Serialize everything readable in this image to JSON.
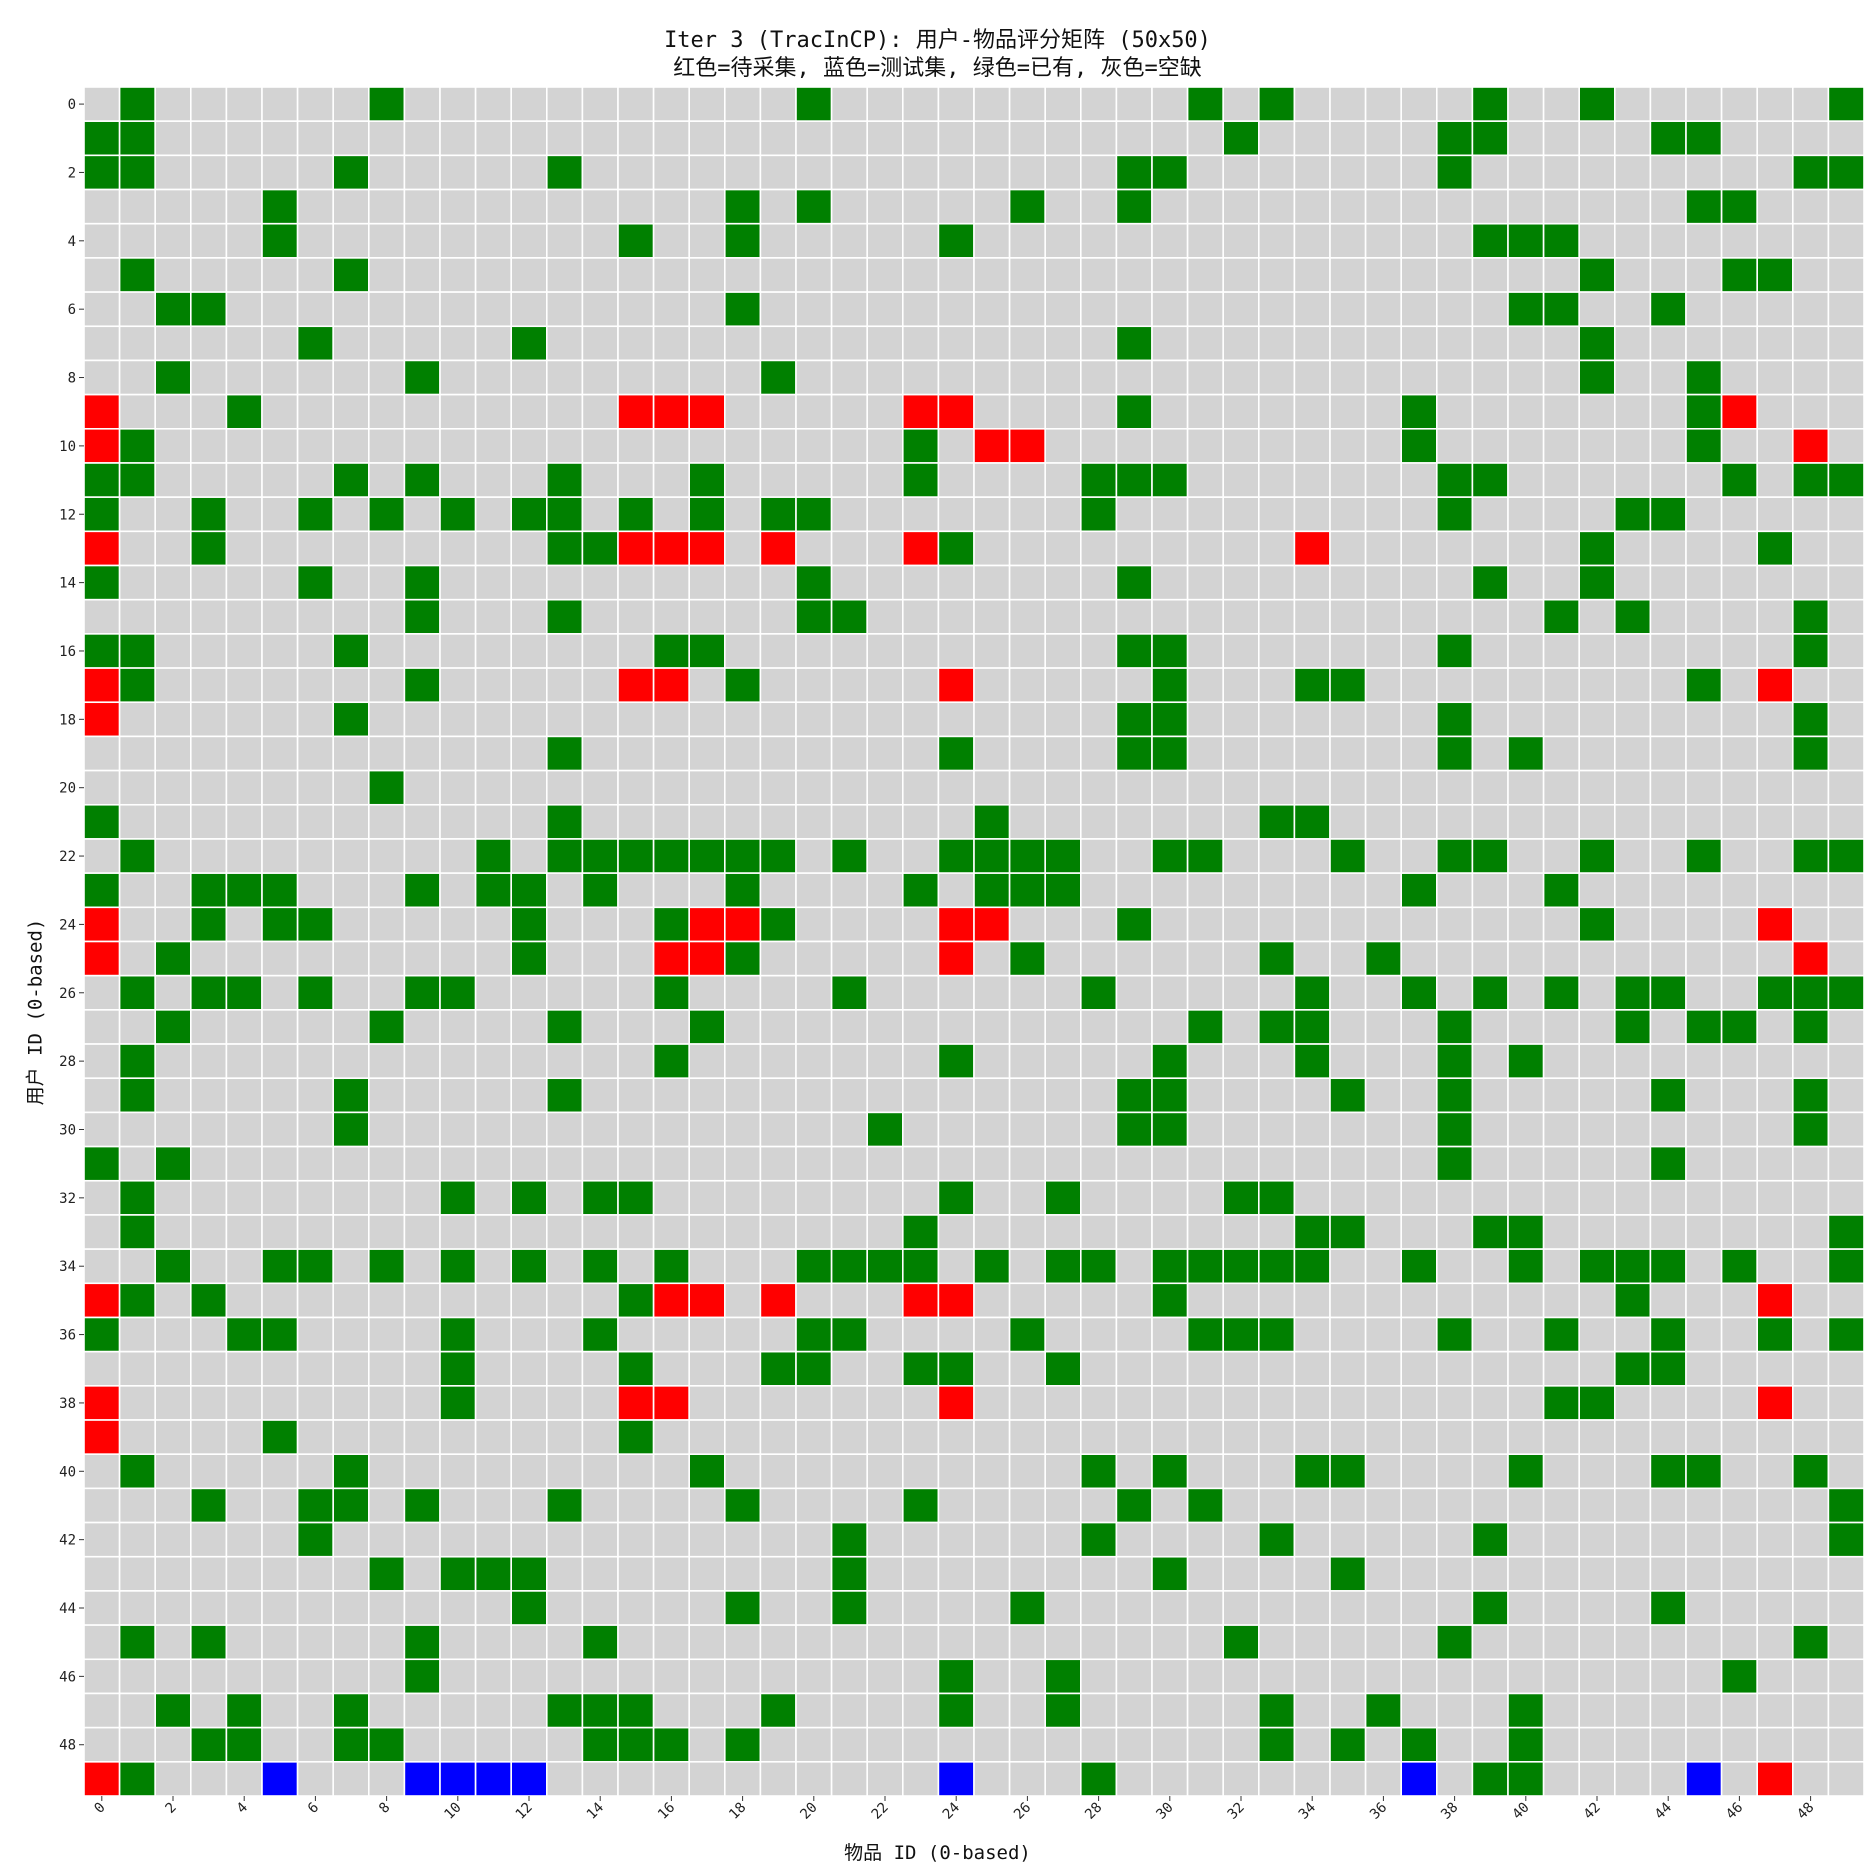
{
  "chart_data": {
    "type": "heatmap",
    "title": "Iter 3 (TracInCP): 用户-物品评分矩阵 (50x50)",
    "subtitle": "红色=待采集, 蓝色=测试集, 绿色=已有, 灰色=空缺",
    "xlabel": "物品 ID (0-based)",
    "ylabel": "用户 ID (0-based)",
    "rows": 50,
    "cols": 50,
    "x_ticks": [
      0,
      2,
      4,
      6,
      8,
      10,
      12,
      14,
      16,
      18,
      20,
      22,
      24,
      26,
      28,
      30,
      32,
      34,
      36,
      38,
      40,
      42,
      44,
      46,
      48
    ],
    "y_ticks": [
      0,
      2,
      4,
      6,
      8,
      10,
      12,
      14,
      16,
      18,
      20,
      22,
      24,
      26,
      28,
      30,
      32,
      34,
      36,
      38,
      40,
      42,
      44,
      46,
      48
    ],
    "colors": {
      "red": "#ff0000",
      "blue": "#0000ff",
      "green": "#008000",
      "gray": "#d3d3d3",
      "gridline": "#ffffff"
    },
    "legend_map": {
      "R": "待采集",
      "B": "测试集",
      "G": "已有",
      ".": "空缺"
    },
    "matrix": [
      ".G......G...........G..........G.G.....G..G......G.",
      "GG..............................G.....GG....GG....GGG..GG..",
      "GG.....G.....G...............GG.......G.........GG",
      ".....G............G.G.....G..G...............GG......",
      ".....G.........G..G.....G..............GGG.........",
      ".G.....G..................................G...GG....GG..G....",
      "..GG..............G.....................GG..G......G......",
      "......G.....G................G............G.......",
      "..G......G.........G......................G..G....",
      "R...G..........RRR.....RR....G.......G.......GR..",
      "RG.....................G.RR..........G.......G..R..",
      "GG.....G.G...G...G.....G....GGG.......GG......G.GG",
      "G..G..G.G.G.GG.G.G.GG.......G.........G....GG.....",
      "R..G.........GGRRR.R...RG.........R.......G....G..",
      "G.....G..G..........G........G.........G..G......",
      ".........G...G......GG...................G.G....G.",
      "GG.....G........GG...........GG.......G.........G.",
      "RG.......G.....RR.G.....R.....G...GG.........G.R..",
      "R......G.....................GG.......G.........G.",
      ".............G..........G....GG.......G.G.......G.",
      "........G.........................................",
      "G............G...........G.......GG...............",
      ".G.........G.GGGGGGG.G..GGGG..GG...G..GG..G..G..GGG",
      "G..GGG...G.GG.G...G....G.GGG.........G...G......",
      "R..G.GG.....G...GRRG....RR...G............G....R..",
      "R.G.........G...RRG.....R.G......G..G...........R..",
      ".G.GG.G..GG.....G....G......G.....G..G.G.G.GG..GGG",
      "..G.....G....G...G.............G.GG...G....G.GG.G....",
      ".G..............G.......G.....G...G...G.G.........",
      ".G.....G.....G...............GG....G..G.....G...G.",
      ".......G..............G......GG.......G.........G.",
      "G.G...................................G.....G.....",
      ".G........G.G.GG........G..G....GG................",
      ".G.....................G..........GG...GG........G",
      "..G..GG.G.G.G.G.G...GGGG.G.GG.GGGGG..G..G.GGG.G..G",
      "RG.G...........GRR.R...RR.....G............G...R..",
      "G...GG....G...G.....GG....G....GGG....G..G..G..G.G.",
      "..........G....G...GG..GG..G...............GG.....",
      "R.........G....RR.......R................GG....R..",
      "R....G.........G..................................",
      ".G.....G.........G..........G.G...GG....G...GG..G.",
      "...G..GG.G...G....G....G.....G.G.................G",
      "......G..............G......G....G.....G.........G",
      "........G.GGG........G........G....G..............",
      "............G.....G..G....G............G....G.....",
      ".G.G.....G....G.................G.....G.........G.",
      ".........G..............G..G..................G...",
      "..G.G..G.....GGG...G....G..G.....G..G...G.........",
      "...GG..GG.....GGG.G..............G.G.G..G........",
      "RG...B...BBBB...........B...G........B.GG....B.R.."
    ]
  }
}
